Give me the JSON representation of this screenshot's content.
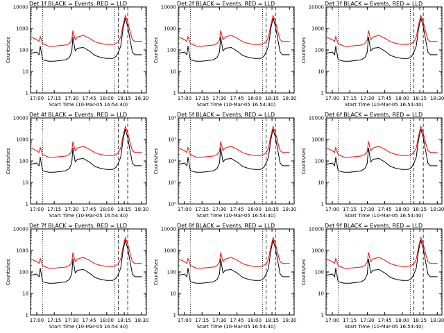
{
  "page": {
    "background": "#ffffff",
    "colors": {
      "events": "#000000",
      "lld": "#ff0000",
      "frame": "#000000"
    }
  },
  "panels": [
    {
      "title": "Det 1f BLACK = Events, RED = LLD",
      "xlabel": "Start Time (10-Mar-05 16:54:40)",
      "ylabel": "Counts/sec",
      "ytick_style": "plain"
    },
    {
      "title": "Det 2f BLACK = Events, RED = LLD",
      "xlabel": "Start Time (10-Mar-05 16:54:40)",
      "ylabel": "Counts/sec",
      "ytick_style": "plain"
    },
    {
      "title": "Det 3f BLACK = Events, RED = LLD",
      "xlabel": "Start Time (10-Mar-05 16:54:40)",
      "ylabel": "Counts/sec",
      "ytick_style": "plain"
    },
    {
      "title": "Det 4f BLACK = Events, RED = LLD",
      "xlabel": "Start Time (10-Mar-05 16:54:40)",
      "ylabel": "Counts/sec",
      "ytick_style": "plain"
    },
    {
      "title": "Det 5f BLACK = Events, RED = LLD",
      "xlabel": "Start Time (10-Mar-05 16:54:40)",
      "ylabel": "Counts/sec",
      "ytick_style": "exp"
    },
    {
      "title": "Det 6f BLACK = Events, RED = LLD",
      "xlabel": "Start Time (10-Mar-05 16:54:40)",
      "ylabel": "Counts/sec",
      "ytick_style": "plain"
    },
    {
      "title": "Det 7f BLACK = Events, RED = LLD",
      "xlabel": "Start Time (10-Mar-05 16:54:40)",
      "ylabel": "Counts/sec",
      "ytick_style": "plain"
    },
    {
      "title": "Det 8f BLACK = Events, RED = LLD",
      "xlabel": "Start Time (10-Mar-05 16:54:40)",
      "ylabel": "Counts/sec",
      "ytick_style": "plain"
    },
    {
      "title": "Det 9f BLACK = Events, RED = LLD",
      "xlabel": "Start Time (10-Mar-05 16:54:40)",
      "ylabel": "Counts/sec",
      "ytick_style": "plain"
    }
  ],
  "chart_data": {
    "type": "line",
    "layout": "3x3 grid",
    "yscale": "log",
    "ylim": [
      1,
      10000
    ],
    "yticks": [
      1,
      10,
      100,
      1000,
      10000
    ],
    "ytick_labels_plain": [
      "1",
      "10",
      "100",
      "1000",
      "10000"
    ],
    "ytick_labels_exp": [
      "10⁰",
      "10¹",
      "10²",
      "10³",
      "10⁴"
    ],
    "xlim": [
      "16:54:40",
      "18:34:00"
    ],
    "xticks": [
      "17:00",
      "17:15",
      "17:30",
      "17:45",
      "18:00",
      "18:15",
      "18:30"
    ],
    "dotted_vlines": [
      "17:05",
      "18:07"
    ],
    "dashed_vlines": [
      "18:10",
      "18:18"
    ],
    "series": [
      {
        "name": "LLD",
        "color": "#ff0000",
        "x": [
          "16:55",
          "17:00",
          "17:02",
          "17:03",
          "17:05",
          "17:10",
          "17:15",
          "17:20",
          "17:25",
          "17:28",
          "17:30",
          "17:31",
          "17:33",
          "17:35",
          "17:40",
          "17:45",
          "17:50",
          "17:55",
          "18:00",
          "18:05",
          "18:08",
          "18:10",
          "18:12",
          "18:14",
          "18:16",
          "18:18",
          "18:20",
          "18:22",
          "18:24",
          "18:30"
        ],
        "y": [
          400,
          300,
          250,
          420,
          200,
          150,
          150,
          160,
          170,
          200,
          280,
          800,
          300,
          400,
          480,
          350,
          240,
          200,
          180,
          180,
          200,
          250,
          400,
          1500,
          4000,
          2000,
          700,
          300,
          250,
          250
        ]
      },
      {
        "name": "Events",
        "color": "#000000",
        "x": [
          "16:55",
          "17:00",
          "17:02",
          "17:03",
          "17:05",
          "17:10",
          "17:15",
          "17:20",
          "17:25",
          "17:28",
          "17:30",
          "17:31",
          "17:33",
          "17:35",
          "17:40",
          "17:45",
          "17:50",
          "17:55",
          "18:00",
          "18:05",
          "18:08",
          "18:10",
          "18:12",
          "18:14",
          "18:16",
          "18:18",
          "18:20",
          "18:22",
          "18:24",
          "18:30"
        ],
        "y": [
          70,
          80,
          60,
          150,
          35,
          30,
          30,
          32,
          35,
          45,
          80,
          400,
          90,
          120,
          130,
          90,
          55,
          45,
          40,
          40,
          50,
          80,
          150,
          1000,
          3000,
          1200,
          300,
          80,
          60,
          60
        ]
      }
    ]
  }
}
